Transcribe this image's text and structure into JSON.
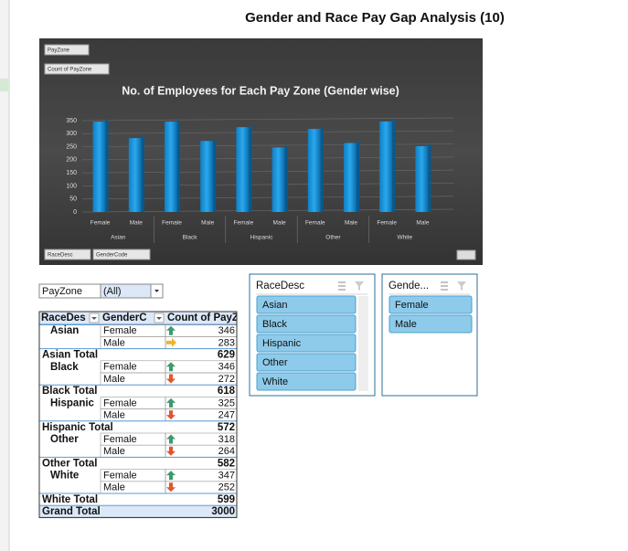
{
  "title": "Gender and Race Pay Gap Analysis (10)",
  "chart": {
    "type": "bar",
    "field_buttons": [
      "PayZone",
      "Count of PayZone"
    ],
    "title": "No. of Employees for Each Pay Zone (Gender wise)",
    "categories": [
      "Female",
      "Male",
      "Female",
      "Male",
      "Female",
      "Male",
      "Female",
      "Male",
      "Female",
      "Male"
    ],
    "groups": [
      "Asian",
      "Black",
      "Hispanic",
      "Other",
      "White"
    ],
    "values": [
      346,
      283,
      346,
      272,
      325,
      247,
      318,
      264,
      347,
      252
    ],
    "color": "#1e9be0",
    "ylim": [
      0,
      350
    ],
    "yticks": [
      0,
      50,
      100,
      150,
      200,
      250,
      300,
      350
    ],
    "grid": true,
    "axis_buttons": [
      "RaceDesc",
      "GenderCode"
    ]
  },
  "pivot": {
    "filter": [
      "PayZone",
      "(All)"
    ],
    "headers": [
      "RaceDes",
      "GenderC",
      "Count of PayZ"
    ],
    "groups": [
      {
        "race": "Asian",
        "items": [
          {
            "gender": "Female",
            "count": 346,
            "icon": "up"
          },
          {
            "gender": "Male",
            "count": 283,
            "icon": "side"
          }
        ],
        "total_label": "Asian Total",
        "total": 629
      },
      {
        "race": "Black",
        "items": [
          {
            "gender": "Female",
            "count": 346,
            "icon": "up"
          },
          {
            "gender": "Male",
            "count": 272,
            "icon": "down"
          }
        ],
        "total_label": "Black Total",
        "total": 618
      },
      {
        "race": "Hispanic",
        "items": [
          {
            "gender": "Female",
            "count": 325,
            "icon": "up"
          },
          {
            "gender": "Male",
            "count": 247,
            "icon": "down"
          }
        ],
        "total_label": "Hispanic Total",
        "total": 572
      },
      {
        "race": "Other",
        "items": [
          {
            "gender": "Female",
            "count": 318,
            "icon": "up"
          },
          {
            "gender": "Male",
            "count": 264,
            "icon": "down"
          }
        ],
        "total_label": "Other Total",
        "total": 582
      },
      {
        "race": "White",
        "items": [
          {
            "gender": "Female",
            "count": 347,
            "icon": "up"
          },
          {
            "gender": "Male",
            "count": 252,
            "icon": "down"
          }
        ],
        "total_label": "White Total",
        "total": 599
      }
    ],
    "grand_total_label": "Grand Total",
    "grand_total": 3000
  },
  "slicers": [
    {
      "title": "RaceDesc",
      "items": [
        "Asian",
        "Black",
        "Hispanic",
        "Other",
        "White"
      ]
    },
    {
      "title": "Gende...",
      "items": [
        "Female",
        "Male"
      ]
    }
  ]
}
